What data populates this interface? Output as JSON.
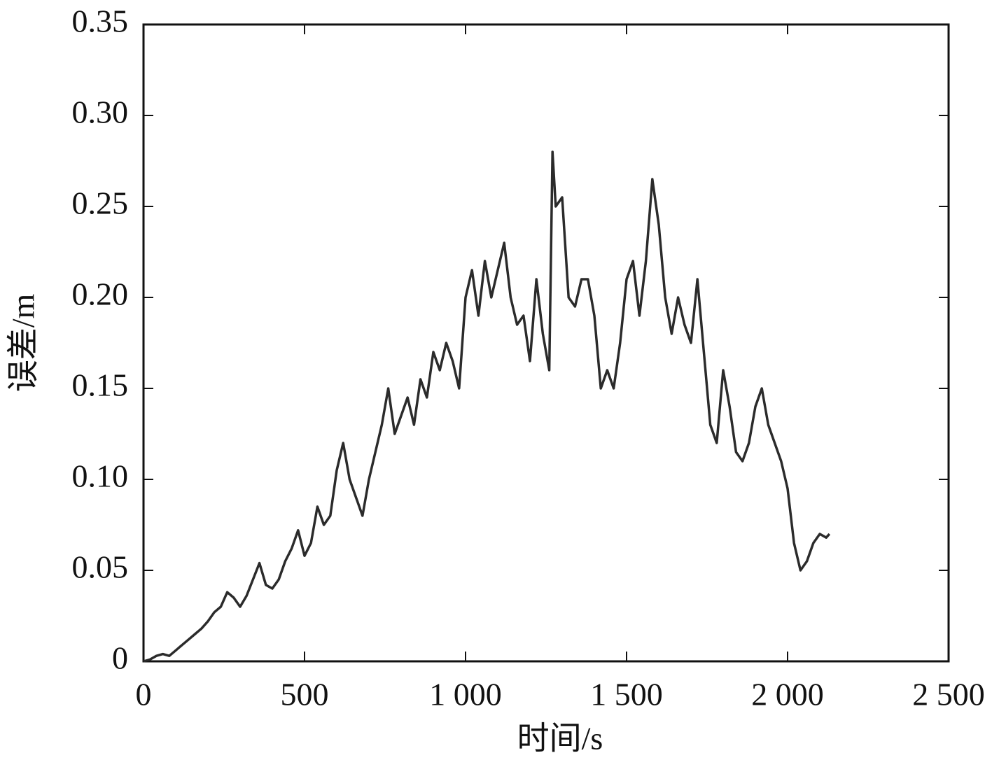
{
  "chart_data": {
    "type": "line",
    "xlabel": "时间/s",
    "ylabel": "误差/m",
    "xlim": [
      0,
      2500
    ],
    "xticks": [
      0,
      500,
      {
        "value": 1000,
        "label": "1 000"
      },
      {
        "value": 1500,
        "label": "1 500"
      },
      {
        "value": 2000,
        "label": "2 000"
      },
      {
        "value": 2500,
        "label": "2 500"
      }
    ],
    "ylim": [
      0,
      0.35
    ],
    "yticks": [
      0,
      0.05,
      {
        "value": 0.1,
        "label": "0.10"
      },
      0.15,
      {
        "value": 0.2,
        "label": "0.20"
      },
      0.25,
      {
        "value": 0.3,
        "label": "0.30"
      },
      0.35
    ],
    "grid": false,
    "series": [
      {
        "color": "#2b2b2b",
        "x": [
          0,
          20,
          40,
          60,
          80,
          100,
          120,
          140,
          160,
          180,
          200,
          220,
          240,
          260,
          280,
          300,
          320,
          340,
          360,
          380,
          400,
          420,
          440,
          460,
          480,
          500,
          520,
          540,
          560,
          580,
          600,
          620,
          640,
          660,
          680,
          700,
          720,
          740,
          760,
          780,
          800,
          820,
          840,
          860,
          880,
          900,
          920,
          940,
          960,
          980,
          1000,
          1020,
          1040,
          1060,
          1080,
          1100,
          1120,
          1140,
          1160,
          1180,
          1200,
          1220,
          1240,
          1260,
          1270,
          1280,
          1300,
          1320,
          1340,
          1360,
          1380,
          1400,
          1420,
          1440,
          1460,
          1480,
          1500,
          1520,
          1540,
          1560,
          1580,
          1600,
          1620,
          1640,
          1660,
          1680,
          1700,
          1720,
          1740,
          1760,
          1780,
          1800,
          1820,
          1840,
          1860,
          1880,
          1900,
          1920,
          1940,
          1960,
          1980,
          2000,
          2020,
          2040,
          2060,
          2080,
          2100,
          2120,
          2130
        ],
        "values": [
          0,
          0.001,
          0.003,
          0.004,
          0.003,
          0.006,
          0.009,
          0.012,
          0.015,
          0.018,
          0.022,
          0.027,
          0.03,
          0.038,
          0.035,
          0.03,
          0.036,
          0.045,
          0.054,
          0.042,
          0.04,
          0.045,
          0.055,
          0.062,
          0.072,
          0.058,
          0.065,
          0.085,
          0.075,
          0.08,
          0.105,
          0.12,
          0.1,
          0.09,
          0.08,
          0.1,
          0.115,
          0.13,
          0.15,
          0.125,
          0.135,
          0.145,
          0.13,
          0.155,
          0.145,
          0.17,
          0.16,
          0.175,
          0.165,
          0.15,
          0.2,
          0.215,
          0.19,
          0.22,
          0.2,
          0.215,
          0.23,
          0.2,
          0.185,
          0.19,
          0.165,
          0.21,
          0.18,
          0.16,
          0.28,
          0.25,
          0.255,
          0.2,
          0.195,
          0.21,
          0.21,
          0.19,
          0.15,
          0.16,
          0.15,
          0.175,
          0.21,
          0.22,
          0.19,
          0.22,
          0.265,
          0.24,
          0.2,
          0.18,
          0.2,
          0.185,
          0.175,
          0.21,
          0.17,
          0.13,
          0.12,
          0.16,
          0.14,
          0.115,
          0.11,
          0.12,
          0.14,
          0.15,
          0.13,
          0.12,
          0.11,
          0.095,
          0.065,
          0.05,
          0.055,
          0.065,
          0.07,
          0.068,
          0.07
        ]
      }
    ]
  }
}
